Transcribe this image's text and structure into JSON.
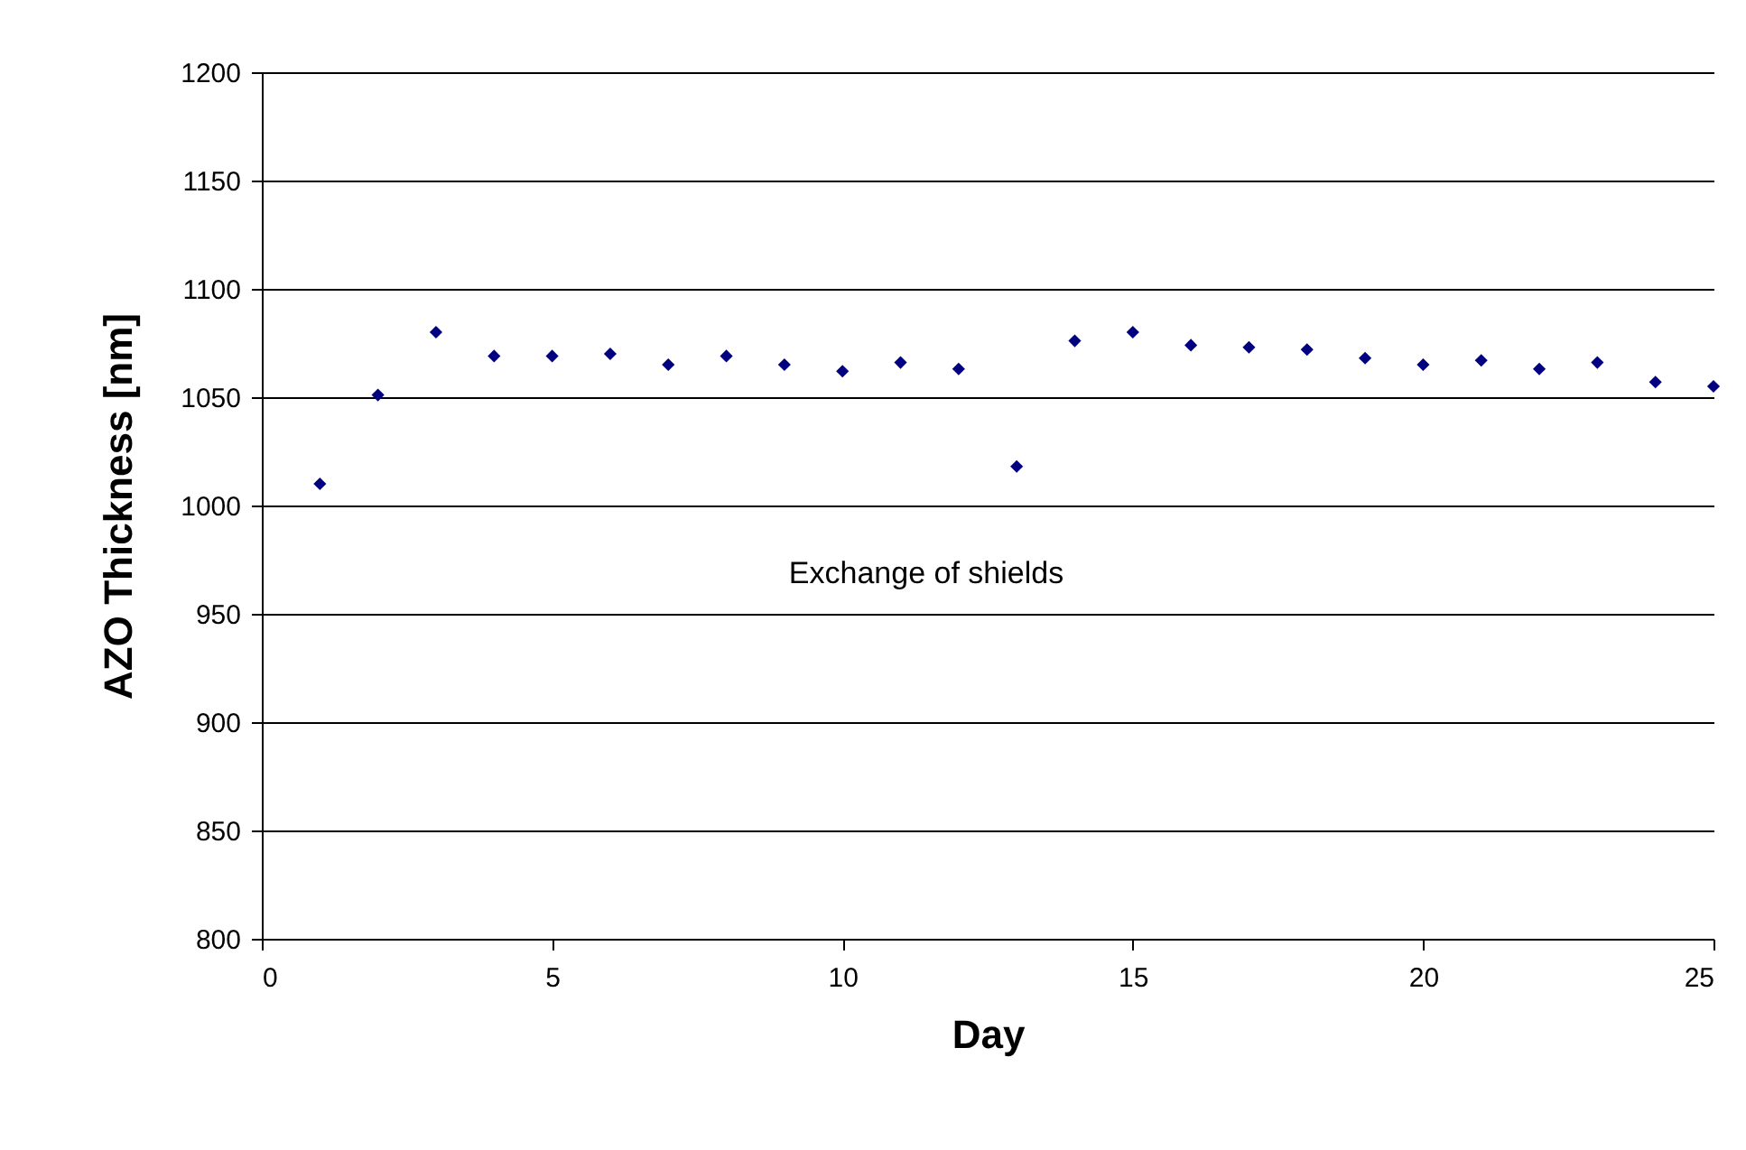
{
  "chart_data": {
    "type": "scatter",
    "xlabel": "Day",
    "ylabel": "AZO Thickness [nm]",
    "x": [
      1,
      2,
      3,
      4,
      5,
      6,
      7,
      8,
      9,
      10,
      11,
      12,
      13,
      14,
      15,
      16,
      17,
      18,
      19,
      20,
      21,
      22,
      23,
      24,
      25
    ],
    "series": [
      {
        "color": "#000080",
        "values": [
          1010,
          1051,
          1080,
          1069,
          1069,
          1070,
          1065,
          1069,
          1065,
          1062,
          1066,
          1063,
          1018,
          1076,
          1080,
          1074,
          1073,
          1072,
          1068,
          1065,
          1067,
          1063,
          1066,
          1057,
          1055
        ]
      }
    ],
    "xlim": [
      0,
      25
    ],
    "xticks": [
      0,
      5,
      10,
      15,
      20,
      25
    ],
    "ylim": [
      800,
      1200
    ],
    "yticks": [
      800,
      850,
      900,
      950,
      1000,
      1050,
      1100,
      1150,
      1200
    ],
    "grid": "y",
    "marker": "diamond",
    "annotations": [
      "Exchange of shields"
    ]
  }
}
